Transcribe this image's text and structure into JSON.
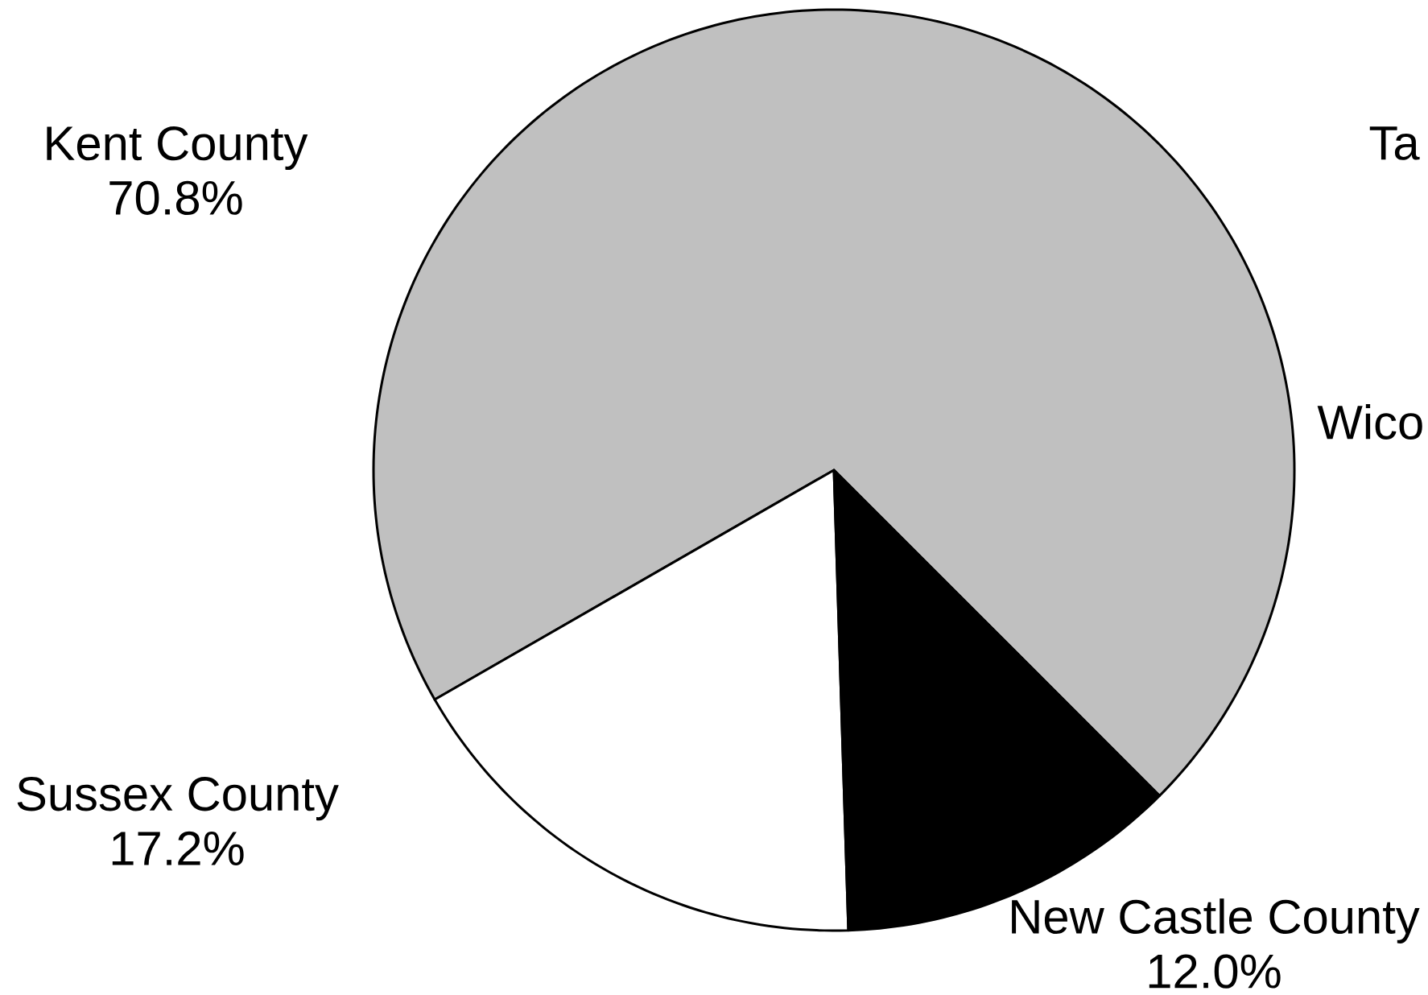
{
  "chart_data": {
    "type": "pie",
    "categories": [
      "Kent County",
      "Sussex County",
      "New Castle County"
    ],
    "values": [
      70.8,
      17.2,
      12.0
    ],
    "colors": [
      "#c0c0c0",
      "#ffffff",
      "#000000"
    ],
    "value_labels": [
      "70.8%",
      "17.2%",
      "12.0%"
    ],
    "annotations": [
      "Ta",
      "Wico"
    ]
  }
}
